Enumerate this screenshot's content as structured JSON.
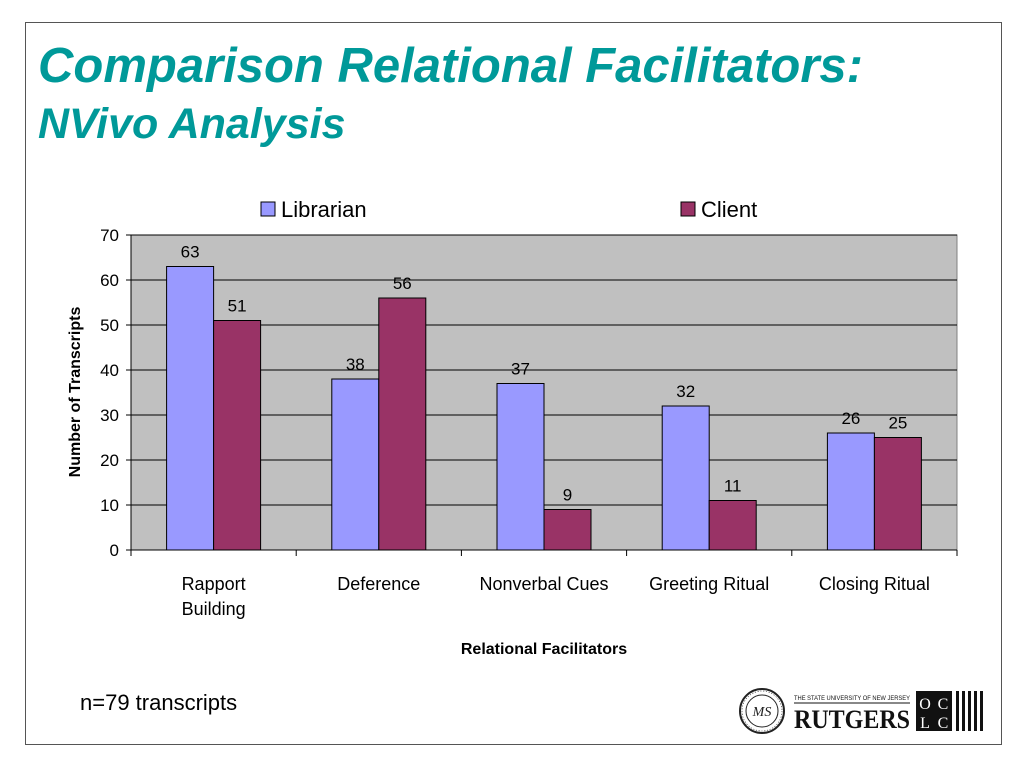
{
  "slide": {
    "title_line1": "Comparison Relational Facilitators:",
    "title_line2": "NVivo Analysis",
    "footnote": "n=79 transcripts"
  },
  "logos": {
    "seal_text": "MS",
    "rutgers_top": "THE STATE UNIVERSITY OF NEW JERSEY",
    "rutgers_name": "RUTGERS",
    "oclc_letters": [
      "O",
      "C",
      "L",
      "C"
    ]
  },
  "chart_data": {
    "type": "bar",
    "categories": [
      [
        "Rapport",
        "Building"
      ],
      [
        "Deference"
      ],
      [
        "Nonverbal Cues"
      ],
      [
        "Greeting Ritual"
      ],
      [
        "Closing Ritual"
      ]
    ],
    "series": [
      {
        "name": "Librarian",
        "values": [
          63,
          38,
          37,
          32,
          26
        ],
        "color": "#9999ff"
      },
      {
        "name": "Client",
        "values": [
          51,
          56,
          9,
          11,
          25
        ],
        "color": "#993366"
      }
    ],
    "xlabel": "Relational Facilitators",
    "ylabel": "Number of Transcripts",
    "ylim": [
      0,
      70
    ],
    "yticks": [
      0,
      10,
      20,
      30,
      40,
      50,
      60,
      70
    ],
    "grid": true,
    "plot_background": "#c0c0c0",
    "legend_position": "top",
    "data_labels": true
  }
}
